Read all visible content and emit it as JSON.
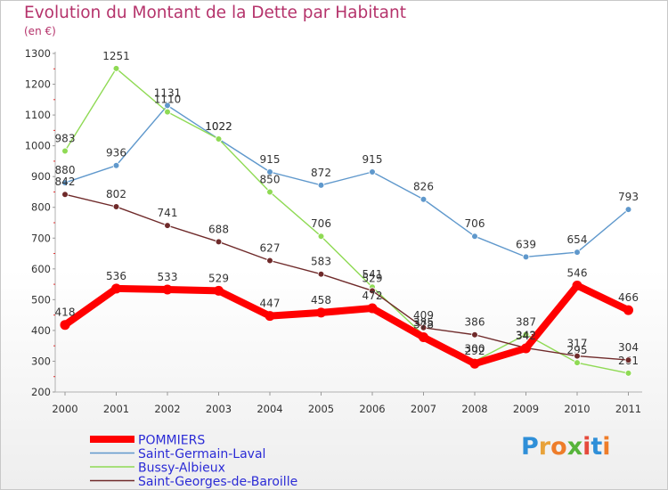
{
  "chart_data": {
    "type": "line",
    "title": "Evolution du Montant de la Dette par Habitant",
    "unit_label": "(en €)",
    "categories": [
      "2000",
      "2001",
      "2002",
      "2003",
      "2004",
      "2005",
      "2006",
      "2007",
      "2008",
      "2009",
      "2010",
      "2011"
    ],
    "y_ticks": [
      "200",
      "300",
      "400",
      "500",
      "600",
      "700",
      "800",
      "900",
      "1000",
      "1100",
      "1200",
      "1300"
    ],
    "ylim": [
      200,
      1300
    ],
    "grid": false,
    "legend_position": "bottom-left",
    "series": [
      {
        "name": "POMMIERS",
        "color": "#ff0000",
        "values": [
          418,
          536,
          533,
          529,
          447,
          458,
          472,
          378,
          292,
          342,
          546,
          466
        ],
        "labels": [
          "418",
          "536",
          "533",
          "529",
          "447",
          "458",
          "472",
          "378",
          "292",
          "342",
          "546",
          "466"
        ]
      },
      {
        "name": "Saint-Germain-Laval",
        "color": "#5f98cc",
        "values": [
          880,
          936,
          1131,
          1022,
          915,
          872,
          915,
          826,
          706,
          639,
          654,
          793
        ],
        "labels": [
          "880",
          "936",
          "1131",
          "1022",
          "915",
          "872",
          "915",
          "826",
          "706",
          "639",
          "654",
          "793"
        ]
      },
      {
        "name": "Bussy-Albieux",
        "color": "#8fda54",
        "values": [
          983,
          1251,
          1110,
          1022,
          850,
          706,
          541,
          385,
          300,
          387,
          295,
          261
        ],
        "labels": [
          "983",
          "1251",
          "1110",
          "1022",
          "850",
          "706",
          "541",
          "385",
          "300",
          "387",
          "295",
          "261"
        ]
      },
      {
        "name": "Saint-Georges-de-Baroille",
        "color": "#6f2a2a",
        "values": [
          842,
          802,
          741,
          688,
          627,
          583,
          529,
          409,
          386,
          343,
          317,
          304
        ],
        "labels": [
          "842",
          "802",
          "741",
          "688",
          "627",
          "583",
          "529",
          "409",
          "386",
          "343",
          "317",
          "304"
        ]
      }
    ]
  },
  "brand": {
    "logo_letters": [
      "P",
      "r",
      "o",
      "x",
      "i",
      "t",
      "i"
    ],
    "logo_colors": [
      "#2f8fd8",
      "#e8a23a",
      "#ee7d2a",
      "#56b43a",
      "#e54a3c",
      "#2f8fd8",
      "#ee7d2a"
    ]
  }
}
